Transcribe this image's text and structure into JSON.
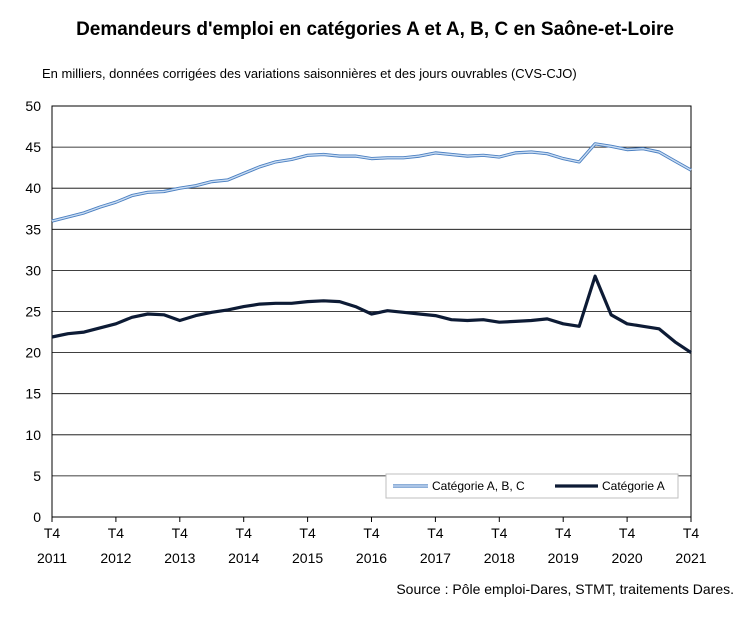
{
  "chart_data": {
    "type": "line",
    "title": "Demandeurs d'emploi en catégories A et A, B, C en Saône-et-Loire",
    "subtitle": "En milliers, données corrigées des variations saisonnières et des jours ouvrables (CVS-CJO)",
    "source": "Source : Pôle emploi-Dares, STMT, traitements Dares.",
    "ylim": [
      0,
      50
    ],
    "yticks": [
      "0",
      "5",
      "10",
      "15",
      "20",
      "25",
      "30",
      "35",
      "40",
      "45",
      "50"
    ],
    "xtick_labels": [
      {
        "quarter": "T4",
        "year": "2011"
      },
      {
        "quarter": "T4",
        "year": "2012"
      },
      {
        "quarter": "T4",
        "year": "2013"
      },
      {
        "quarter": "T4",
        "year": "2014"
      },
      {
        "quarter": "T4",
        "year": "2015"
      },
      {
        "quarter": "T4",
        "year": "2016"
      },
      {
        "quarter": "T4",
        "year": "2017"
      },
      {
        "quarter": "T4",
        "year": "2018"
      },
      {
        "quarter": "T4",
        "year": "2019"
      },
      {
        "quarter": "T4",
        "year": "2020"
      },
      {
        "quarter": "T4",
        "year": "2021"
      }
    ],
    "x": [
      "2011 T4",
      "2012 T1",
      "2012 T2",
      "2012 T3",
      "2012 T4",
      "2013 T1",
      "2013 T2",
      "2013 T3",
      "2013 T4",
      "2014 T1",
      "2014 T2",
      "2014 T3",
      "2014 T4",
      "2015 T1",
      "2015 T2",
      "2015 T3",
      "2015 T4",
      "2016 T1",
      "2016 T2",
      "2016 T3",
      "2016 T4",
      "2017 T1",
      "2017 T2",
      "2017 T3",
      "2017 T4",
      "2018 T1",
      "2018 T2",
      "2018 T3",
      "2018 T4",
      "2019 T1",
      "2019 T2",
      "2019 T3",
      "2019 T4",
      "2020 T1",
      "2020 T2",
      "2020 T3",
      "2020 T4",
      "2021 T1",
      "2021 T2",
      "2021 T3",
      "2021 T4"
    ],
    "series": [
      {
        "name": "Catégorie A, B, C",
        "color": "#7aa6d9",
        "values": [
          36.0,
          36.5,
          37.0,
          37.7,
          38.3,
          39.1,
          39.5,
          39.6,
          40.0,
          40.3,
          40.8,
          41.0,
          41.8,
          42.6,
          43.2,
          43.5,
          44.0,
          44.1,
          43.9,
          43.9,
          43.6,
          43.7,
          43.7,
          43.9,
          44.3,
          44.1,
          43.9,
          44.0,
          43.8,
          44.3,
          44.4,
          44.2,
          43.6,
          43.2,
          45.4,
          45.1,
          44.7,
          44.8,
          44.4,
          43.3,
          42.2
        ]
      },
      {
        "name": "Catégorie A",
        "color": "#0d1b35",
        "values": [
          21.9,
          22.3,
          22.5,
          23.0,
          23.5,
          24.3,
          24.7,
          24.6,
          23.9,
          24.5,
          24.9,
          25.2,
          25.6,
          25.9,
          26.0,
          26.0,
          26.2,
          26.3,
          26.2,
          25.6,
          24.7,
          25.1,
          24.9,
          24.7,
          24.5,
          24.0,
          23.9,
          24.0,
          23.7,
          23.8,
          23.9,
          24.1,
          23.5,
          23.2,
          29.3,
          24.6,
          23.5,
          23.2,
          22.9,
          21.3,
          20.0
        ]
      }
    ],
    "legend_position": "bottom-right inside plot",
    "grid": "horizontal"
  }
}
